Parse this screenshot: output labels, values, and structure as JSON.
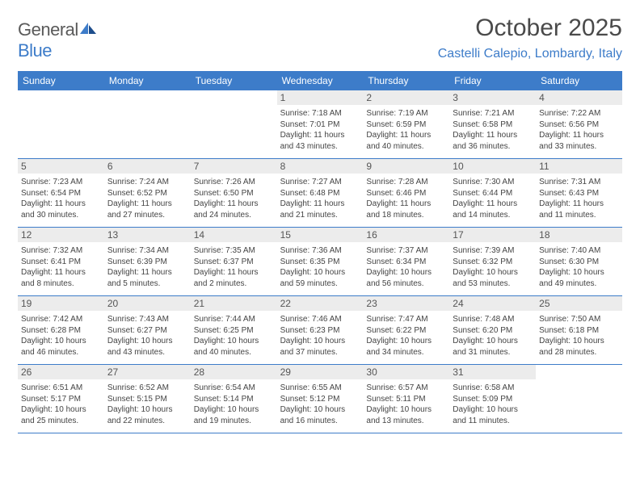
{
  "brand": {
    "name_gray": "General",
    "name_blue": "Blue"
  },
  "title": "October 2025",
  "location": "Castelli Calepio, Lombardy, Italy",
  "colors": {
    "header_bg": "#3d7cc9",
    "header_text": "#ffffff",
    "daynum_bg": "#ececec",
    "daynum_text": "#555555",
    "body_text": "#444444",
    "title_text": "#4a4a4a",
    "location_text": "#3d7cc9",
    "week_border": "#3d7cc9",
    "page_bg": "#ffffff"
  },
  "typography": {
    "title_fontsize": 30,
    "location_fontsize": 16,
    "weekday_fontsize": 12,
    "daynum_fontsize": 12,
    "body_fontsize": 10
  },
  "weekdays": [
    "Sunday",
    "Monday",
    "Tuesday",
    "Wednesday",
    "Thursday",
    "Friday",
    "Saturday"
  ],
  "weeks": [
    [
      {
        "n": "",
        "sr": "",
        "ss": "",
        "dl": ""
      },
      {
        "n": "",
        "sr": "",
        "ss": "",
        "dl": ""
      },
      {
        "n": "",
        "sr": "",
        "ss": "",
        "dl": ""
      },
      {
        "n": "1",
        "sr": "Sunrise: 7:18 AM",
        "ss": "Sunset: 7:01 PM",
        "dl": "Daylight: 11 hours and 43 minutes."
      },
      {
        "n": "2",
        "sr": "Sunrise: 7:19 AM",
        "ss": "Sunset: 6:59 PM",
        "dl": "Daylight: 11 hours and 40 minutes."
      },
      {
        "n": "3",
        "sr": "Sunrise: 7:21 AM",
        "ss": "Sunset: 6:58 PM",
        "dl": "Daylight: 11 hours and 36 minutes."
      },
      {
        "n": "4",
        "sr": "Sunrise: 7:22 AM",
        "ss": "Sunset: 6:56 PM",
        "dl": "Daylight: 11 hours and 33 minutes."
      }
    ],
    [
      {
        "n": "5",
        "sr": "Sunrise: 7:23 AM",
        "ss": "Sunset: 6:54 PM",
        "dl": "Daylight: 11 hours and 30 minutes."
      },
      {
        "n": "6",
        "sr": "Sunrise: 7:24 AM",
        "ss": "Sunset: 6:52 PM",
        "dl": "Daylight: 11 hours and 27 minutes."
      },
      {
        "n": "7",
        "sr": "Sunrise: 7:26 AM",
        "ss": "Sunset: 6:50 PM",
        "dl": "Daylight: 11 hours and 24 minutes."
      },
      {
        "n": "8",
        "sr": "Sunrise: 7:27 AM",
        "ss": "Sunset: 6:48 PM",
        "dl": "Daylight: 11 hours and 21 minutes."
      },
      {
        "n": "9",
        "sr": "Sunrise: 7:28 AM",
        "ss": "Sunset: 6:46 PM",
        "dl": "Daylight: 11 hours and 18 minutes."
      },
      {
        "n": "10",
        "sr": "Sunrise: 7:30 AM",
        "ss": "Sunset: 6:44 PM",
        "dl": "Daylight: 11 hours and 14 minutes."
      },
      {
        "n": "11",
        "sr": "Sunrise: 7:31 AM",
        "ss": "Sunset: 6:43 PM",
        "dl": "Daylight: 11 hours and 11 minutes."
      }
    ],
    [
      {
        "n": "12",
        "sr": "Sunrise: 7:32 AM",
        "ss": "Sunset: 6:41 PM",
        "dl": "Daylight: 11 hours and 8 minutes."
      },
      {
        "n": "13",
        "sr": "Sunrise: 7:34 AM",
        "ss": "Sunset: 6:39 PM",
        "dl": "Daylight: 11 hours and 5 minutes."
      },
      {
        "n": "14",
        "sr": "Sunrise: 7:35 AM",
        "ss": "Sunset: 6:37 PM",
        "dl": "Daylight: 11 hours and 2 minutes."
      },
      {
        "n": "15",
        "sr": "Sunrise: 7:36 AM",
        "ss": "Sunset: 6:35 PM",
        "dl": "Daylight: 10 hours and 59 minutes."
      },
      {
        "n": "16",
        "sr": "Sunrise: 7:37 AM",
        "ss": "Sunset: 6:34 PM",
        "dl": "Daylight: 10 hours and 56 minutes."
      },
      {
        "n": "17",
        "sr": "Sunrise: 7:39 AM",
        "ss": "Sunset: 6:32 PM",
        "dl": "Daylight: 10 hours and 53 minutes."
      },
      {
        "n": "18",
        "sr": "Sunrise: 7:40 AM",
        "ss": "Sunset: 6:30 PM",
        "dl": "Daylight: 10 hours and 49 minutes."
      }
    ],
    [
      {
        "n": "19",
        "sr": "Sunrise: 7:42 AM",
        "ss": "Sunset: 6:28 PM",
        "dl": "Daylight: 10 hours and 46 minutes."
      },
      {
        "n": "20",
        "sr": "Sunrise: 7:43 AM",
        "ss": "Sunset: 6:27 PM",
        "dl": "Daylight: 10 hours and 43 minutes."
      },
      {
        "n": "21",
        "sr": "Sunrise: 7:44 AM",
        "ss": "Sunset: 6:25 PM",
        "dl": "Daylight: 10 hours and 40 minutes."
      },
      {
        "n": "22",
        "sr": "Sunrise: 7:46 AM",
        "ss": "Sunset: 6:23 PM",
        "dl": "Daylight: 10 hours and 37 minutes."
      },
      {
        "n": "23",
        "sr": "Sunrise: 7:47 AM",
        "ss": "Sunset: 6:22 PM",
        "dl": "Daylight: 10 hours and 34 minutes."
      },
      {
        "n": "24",
        "sr": "Sunrise: 7:48 AM",
        "ss": "Sunset: 6:20 PM",
        "dl": "Daylight: 10 hours and 31 minutes."
      },
      {
        "n": "25",
        "sr": "Sunrise: 7:50 AM",
        "ss": "Sunset: 6:18 PM",
        "dl": "Daylight: 10 hours and 28 minutes."
      }
    ],
    [
      {
        "n": "26",
        "sr": "Sunrise: 6:51 AM",
        "ss": "Sunset: 5:17 PM",
        "dl": "Daylight: 10 hours and 25 minutes."
      },
      {
        "n": "27",
        "sr": "Sunrise: 6:52 AM",
        "ss": "Sunset: 5:15 PM",
        "dl": "Daylight: 10 hours and 22 minutes."
      },
      {
        "n": "28",
        "sr": "Sunrise: 6:54 AM",
        "ss": "Sunset: 5:14 PM",
        "dl": "Daylight: 10 hours and 19 minutes."
      },
      {
        "n": "29",
        "sr": "Sunrise: 6:55 AM",
        "ss": "Sunset: 5:12 PM",
        "dl": "Daylight: 10 hours and 16 minutes."
      },
      {
        "n": "30",
        "sr": "Sunrise: 6:57 AM",
        "ss": "Sunset: 5:11 PM",
        "dl": "Daylight: 10 hours and 13 minutes."
      },
      {
        "n": "31",
        "sr": "Sunrise: 6:58 AM",
        "ss": "Sunset: 5:09 PM",
        "dl": "Daylight: 10 hours and 11 minutes."
      },
      {
        "n": "",
        "sr": "",
        "ss": "",
        "dl": ""
      }
    ]
  ]
}
